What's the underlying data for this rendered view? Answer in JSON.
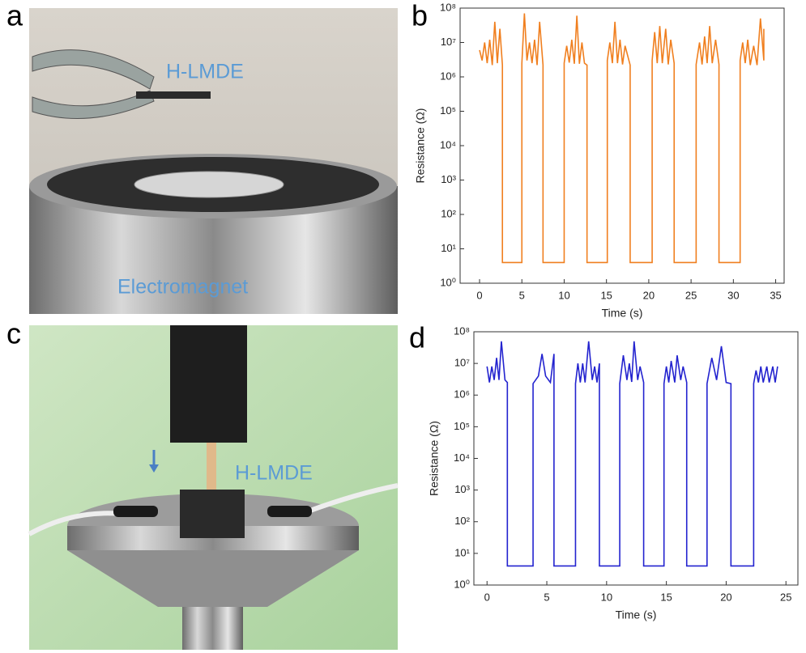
{
  "panel_letters": [
    "a",
    "b",
    "c",
    "d"
  ],
  "photos": [
    {
      "labels": [
        "H-LMDE",
        "Electromagnet"
      ]
    },
    {
      "labels": [
        "H-LMDE"
      ]
    }
  ],
  "chart_data": [
    {
      "type": "line",
      "color": "#f07f1f",
      "log_y": true,
      "x_label": "Time (s)",
      "y_label": "Resistance (Ω)",
      "xlim": [
        -2.3,
        36
      ],
      "ylim": [
        1,
        100000000
      ],
      "xticks": [
        0,
        5,
        10,
        15,
        20,
        25,
        30,
        35
      ],
      "yticks": [
        {
          "value": 1,
          "label": "10⁰"
        },
        {
          "value": 10,
          "label": "10¹"
        },
        {
          "value": 100,
          "label": "10²"
        },
        {
          "value": 1000,
          "label": "10³"
        },
        {
          "value": 10000,
          "label": "10⁴"
        },
        {
          "value": 100000,
          "label": "10⁵"
        },
        {
          "value": 1000000,
          "label": "10⁶"
        },
        {
          "value": 10000000,
          "label": "10⁷"
        },
        {
          "value": 100000000,
          "label": "10⁸"
        }
      ],
      "x": [
        0,
        0.3,
        0.6,
        0.9,
        1.2,
        1.5,
        1.8,
        2.1,
        2.4,
        2.7,
        2.7,
        5.0,
        5.0,
        5.3,
        5.6,
        5.9,
        6.2,
        6.5,
        6.8,
        7.1,
        7.5,
        7.5,
        10.0,
        10.0,
        10.3,
        10.6,
        10.9,
        11.2,
        11.5,
        11.8,
        12.1,
        12.4,
        12.7,
        12.7,
        15.1,
        15.1,
        15.4,
        15.7,
        16.0,
        16.3,
        16.6,
        16.9,
        17.2,
        17.8,
        17.8,
        20.4,
        20.4,
        20.7,
        21.0,
        21.3,
        21.6,
        22.0,
        22.3,
        22.6,
        23.0,
        23.0,
        25.6,
        25.6,
        26.0,
        26.3,
        26.6,
        26.9,
        27.2,
        27.5,
        27.9,
        28.3,
        28.3,
        30.8,
        30.8,
        31.1,
        31.4,
        31.7,
        32.0,
        32.4,
        32.8,
        33.2,
        33.6,
        33.6
      ],
      "values": [
        6000000,
        3000000,
        10000000,
        2500000,
        12000000,
        2200000,
        40000000,
        2500000,
        25000000,
        2200000,
        4,
        4,
        2500000,
        70000000,
        3000000,
        10000000,
        2500000,
        12000000,
        2200000,
        40000000,
        2200000,
        4,
        4,
        2500000,
        8000000,
        2600000,
        12000000,
        2400000,
        60000000,
        2400000,
        10000000,
        2500000,
        2200000,
        4,
        4,
        3000000,
        10000000,
        2500000,
        40000000,
        2500000,
        12000000,
        2300000,
        8000000,
        2200000,
        4,
        4,
        3000000,
        20000000,
        2500000,
        30000000,
        2500000,
        25000000,
        2300000,
        12000000,
        2500000,
        4,
        4,
        2300000,
        10000000,
        2300000,
        15000000,
        2500000,
        30000000,
        2500000,
        12000000,
        2300000,
        4,
        4,
        3000000,
        10000000,
        2500000,
        12000000,
        2200000,
        8000000,
        2200000,
        50000000,
        3000000,
        25000000
      ]
    },
    {
      "type": "line",
      "color": "#2323cf",
      "log_y": true,
      "x_label": "Time (s)",
      "y_label": "Resistance (Ω)",
      "xlim": [
        -1.1,
        26
      ],
      "ylim": [
        1,
        100000000
      ],
      "xticks": [
        0,
        5,
        10,
        15,
        20,
        25
      ],
      "yticks": [
        {
          "value": 1,
          "label": "10⁰"
        },
        {
          "value": 10,
          "label": "10¹"
        },
        {
          "value": 100,
          "label": "10²"
        },
        {
          "value": 1000,
          "label": "10³"
        },
        {
          "value": 10000,
          "label": "10⁴"
        },
        {
          "value": 100000,
          "label": "10⁵"
        },
        {
          "value": 1000000,
          "label": "10⁶"
        },
        {
          "value": 10000000,
          "label": "10⁷"
        },
        {
          "value": 100000000,
          "label": "10⁸"
        }
      ],
      "x": [
        0,
        0.2,
        0.4,
        0.6,
        0.8,
        1.0,
        1.2,
        1.5,
        1.7,
        1.7,
        3.85,
        3.85,
        4.3,
        4.6,
        4.9,
        5.3,
        5.6,
        5.6,
        7.4,
        7.4,
        7.6,
        7.8,
        8.0,
        8.2,
        8.5,
        8.8,
        9.0,
        9.2,
        9.4,
        9.4,
        11.1,
        11.1,
        11.4,
        11.7,
        11.9,
        12.1,
        12.3,
        12.6,
        12.8,
        13.1,
        13.1,
        14.8,
        14.8,
        15.0,
        15.2,
        15.4,
        15.7,
        15.9,
        16.2,
        16.4,
        16.7,
        16.7,
        18.4,
        18.4,
        18.8,
        19.2,
        19.6,
        20.0,
        20.4,
        20.4,
        22.3,
        22.3,
        22.5,
        22.7,
        22.9,
        23.1,
        23.4,
        23.6,
        23.9,
        24.1,
        24.3
      ],
      "values": [
        8000000,
        2500000,
        8000000,
        3000000,
        15000000,
        3000000,
        50000000,
        3000000,
        2500000,
        4,
        4,
        2300000,
        4000000,
        20000000,
        4000000,
        2500000,
        20000000,
        4,
        4,
        2300000,
        10000000,
        2500000,
        10000000,
        2500000,
        50000000,
        3000000,
        8000000,
        2500000,
        10000000,
        4,
        4,
        2300000,
        18000000,
        3000000,
        10000000,
        2600000,
        50000000,
        3000000,
        8000000,
        2500000,
        4,
        4,
        2300000,
        8000000,
        2500000,
        12000000,
        2500000,
        18000000,
        3000000,
        8000000,
        2500000,
        4,
        4,
        2300000,
        15000000,
        3000000,
        35000000,
        2500000,
        2300000,
        4,
        4,
        2300000,
        6000000,
        2500000,
        8000000,
        2500000,
        8000000,
        2500000,
        8000000,
        2500000,
        8000000
      ]
    }
  ]
}
